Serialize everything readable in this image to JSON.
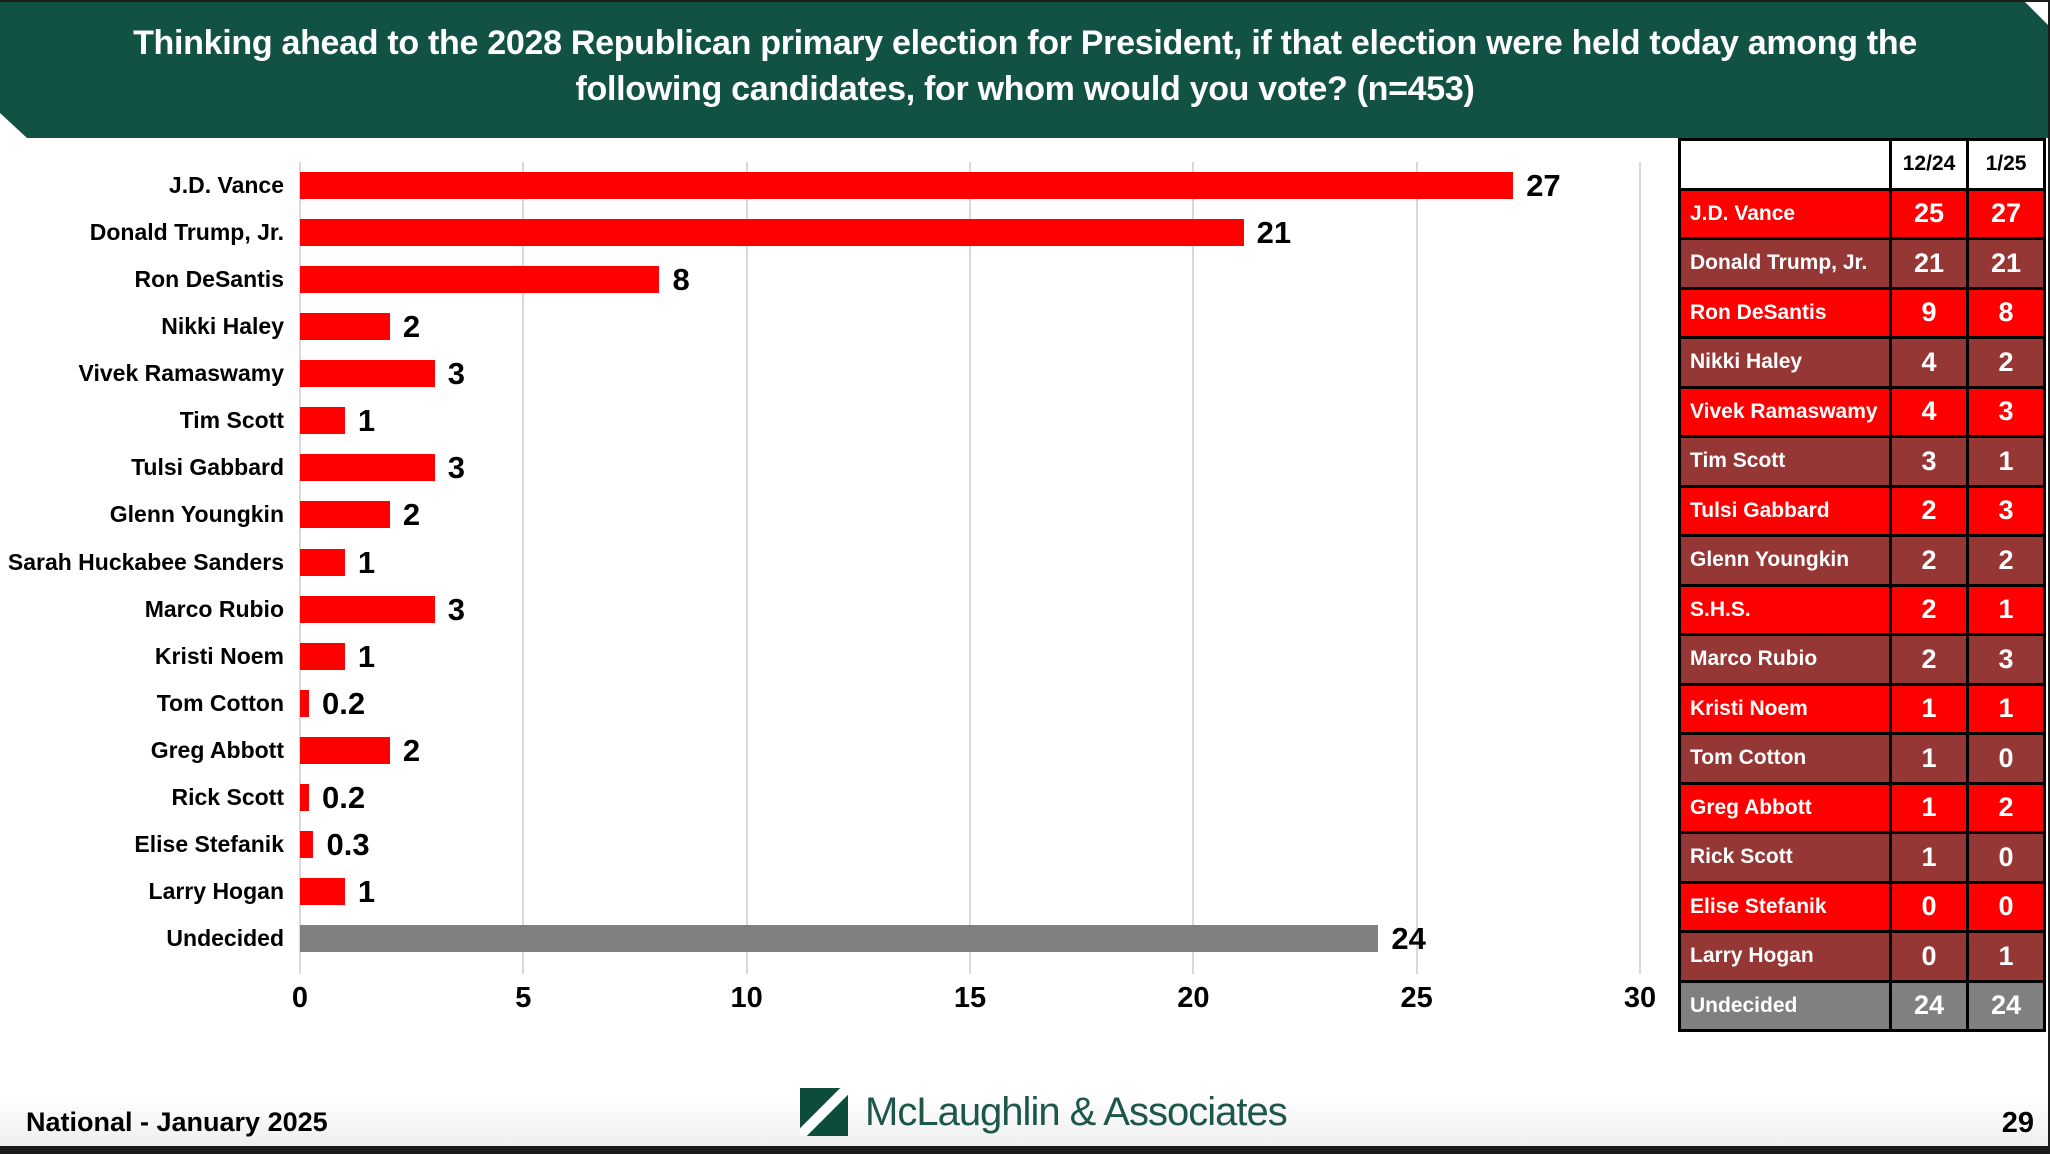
{
  "title": {
    "line1": "Thinking ahead to the 2028 Republican primary election for President, if that election were held today among the",
    "line2": "following candidates, for whom would you vote?  (n=453)"
  },
  "chart_data": {
    "type": "bar",
    "orientation": "horizontal",
    "title": "2028 Republican primary vote preference",
    "xlabel": "",
    "ylabel": "",
    "xlim": [
      0,
      30
    ],
    "xticks": [
      0,
      5,
      10,
      15,
      20,
      25,
      30
    ],
    "grid": "vertical-light-gray",
    "categories": [
      "J.D. Vance",
      "Donald Trump, Jr.",
      "Ron DeSantis",
      "Nikki Haley",
      "Vivek Ramaswamy",
      "Tim Scott",
      "Tulsi Gabbard",
      "Glenn Youngkin",
      "Sarah Huckabee Sanders",
      "Marco Rubio",
      "Kristi Noem",
      "Tom Cotton",
      "Greg Abbott",
      "Rick Scott",
      "Elise Stefanik",
      "Larry Hogan",
      "Undecided"
    ],
    "values": [
      27,
      21,
      8,
      2,
      3,
      1,
      3,
      2,
      1,
      3,
      1,
      0.2,
      2,
      0.2,
      0.3,
      1,
      24
    ],
    "value_labels": [
      "27",
      "21",
      "8",
      "2",
      "3",
      "1",
      "3",
      "2",
      "1",
      "3",
      "1",
      "0.2",
      "2",
      "0.2",
      "0.3",
      "1",
      "24"
    ],
    "bar_colors": [
      "#ff0000",
      "#ff0000",
      "#ff0000",
      "#ff0000",
      "#ff0000",
      "#ff0000",
      "#ff0000",
      "#ff0000",
      "#ff0000",
      "#ff0000",
      "#ff0000",
      "#ff0000",
      "#ff0000",
      "#ff0000",
      "#ff0000",
      "#ff0000",
      "#808080"
    ]
  },
  "table": {
    "columns": [
      "12/24",
      "1/25"
    ],
    "rows": [
      {
        "name": "J.D. Vance",
        "dec24": "25",
        "jan25": "27",
        "variant": "v-red"
      },
      {
        "name": "Donald Trump, Jr.",
        "dec24": "21",
        "jan25": "21",
        "variant": "v-dark"
      },
      {
        "name": "Ron DeSantis",
        "dec24": "9",
        "jan25": "8",
        "variant": "v-red"
      },
      {
        "name": "Nikki Haley",
        "dec24": "4",
        "jan25": "2",
        "variant": "v-dark"
      },
      {
        "name": "Vivek Ramaswamy",
        "dec24": "4",
        "jan25": "3",
        "variant": "v-red"
      },
      {
        "name": "Tim Scott",
        "dec24": "3",
        "jan25": "1",
        "variant": "v-dark"
      },
      {
        "name": "Tulsi Gabbard",
        "dec24": "2",
        "jan25": "3",
        "variant": "v-red"
      },
      {
        "name": "Glenn Youngkin",
        "dec24": "2",
        "jan25": "2",
        "variant": "v-dark"
      },
      {
        "name": "S.H.S.",
        "dec24": "2",
        "jan25": "1",
        "variant": "v-red"
      },
      {
        "name": "Marco Rubio",
        "dec24": "2",
        "jan25": "3",
        "variant": "v-dark"
      },
      {
        "name": "Kristi Noem",
        "dec24": "1",
        "jan25": "1",
        "variant": "v-red"
      },
      {
        "name": "Tom Cotton",
        "dec24": "1",
        "jan25": "0",
        "variant": "v-dark"
      },
      {
        "name": "Greg Abbott",
        "dec24": "1",
        "jan25": "2",
        "variant": "v-red"
      },
      {
        "name": "Rick Scott",
        "dec24": "1",
        "jan25": "0",
        "variant": "v-dark"
      },
      {
        "name": "Elise Stefanik",
        "dec24": "0",
        "jan25": "0",
        "variant": "v-red"
      },
      {
        "name": "Larry Hogan",
        "dec24": "0",
        "jan25": "1",
        "variant": "v-dark"
      },
      {
        "name": "Undecided",
        "dec24": "24",
        "jan25": "24",
        "variant": "v-gray"
      }
    ]
  },
  "footer": {
    "left_text": "National - January 2025",
    "logo_text": "McLaughlin & Associates",
    "page_number": "29"
  },
  "colors": {
    "banner_green": "#125244",
    "logo_green": "#0d4c3c",
    "bar_red": "#ff0000",
    "table_dark_red": "#953735",
    "undecided_gray": "#808080",
    "gridline_gray": "#d9d9d9"
  }
}
